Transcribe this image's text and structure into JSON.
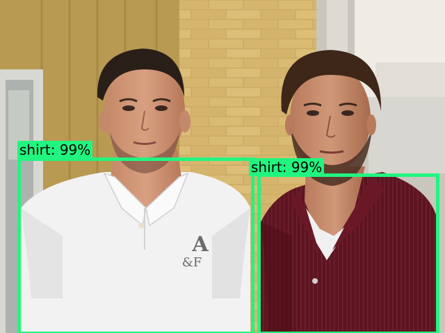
{
  "image": {
    "description_hidden": false
  },
  "detections": [
    {
      "class": "shirt",
      "score": "99%",
      "label": "shirt: 99%",
      "color": "#21f57f"
    },
    {
      "class": "shirt",
      "score": "99%",
      "label": "shirt: 99%",
      "color": "#21f57f"
    }
  ],
  "logo_text": "A&F"
}
